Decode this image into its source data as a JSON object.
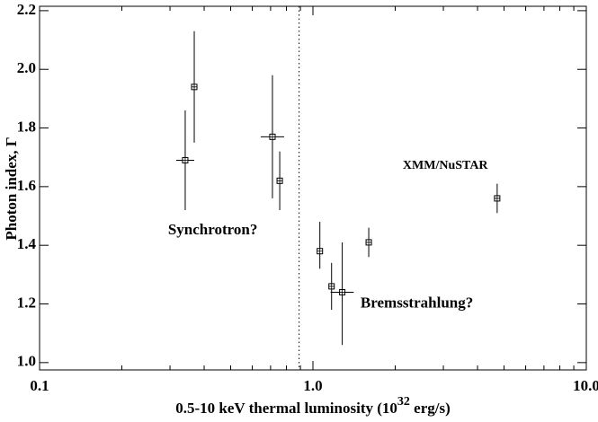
{
  "chart_data": {
    "type": "scatter",
    "xlabel": [
      "0.5-10 keV thermal luminosity (10",
      "32",
      " erg/s)"
    ],
    "ylabel": "Photon index, Γ",
    "xlog": true,
    "xlim": [
      0.1,
      10
    ],
    "ylim": [
      0.975,
      2.215
    ],
    "xticks": [
      {
        "value": 0.1,
        "label": "0.1"
      },
      {
        "value": 1,
        "label": "1.0"
      },
      {
        "value": 10,
        "label": "10.0"
      }
    ],
    "xminor": [
      0.2,
      0.3,
      0.4,
      0.5,
      0.6,
      0.7,
      0.8,
      0.9,
      2,
      3,
      4,
      5,
      6,
      7,
      8,
      9
    ],
    "yticks": [
      {
        "value": 1,
        "label": "1.0"
      },
      1.2,
      1.4,
      1.6,
      1.8,
      {
        "value": 2,
        "label": "2.0"
      },
      2.2
    ],
    "vline": 0.89,
    "color": "#000000",
    "x": [
      0.341,
      0.368,
      0.711,
      0.756,
      1.06,
      1.17,
      1.28,
      1.6,
      4.72
    ],
    "x_low": [
      0.316,
      null,
      0.644,
      null,
      null,
      null,
      1.16,
      null,
      null
    ],
    "x_high": [
      0.368,
      null,
      0.785,
      null,
      null,
      null,
      1.41,
      null,
      null
    ],
    "y": [
      1.69,
      1.94,
      1.77,
      1.62,
      1.38,
      1.26,
      1.24,
      1.41,
      1.56
    ],
    "y_low": [
      1.52,
      1.75,
      1.56,
      1.52,
      1.32,
      1.18,
      1.06,
      1.36,
      1.51
    ],
    "y_high": [
      1.86,
      2.13,
      1.98,
      1.72,
      1.48,
      1.34,
      1.41,
      1.46,
      1.61
    ],
    "annotations": [
      {
        "text": "XMM/NuSTAR",
        "x": 3.05,
        "y": 1.67
      },
      {
        "text": "Synchrotron?",
        "x": 0.43,
        "y": 1.45
      },
      {
        "text": "Bremsstrahlung?",
        "x": 2.4,
        "y": 1.2
      }
    ]
  }
}
